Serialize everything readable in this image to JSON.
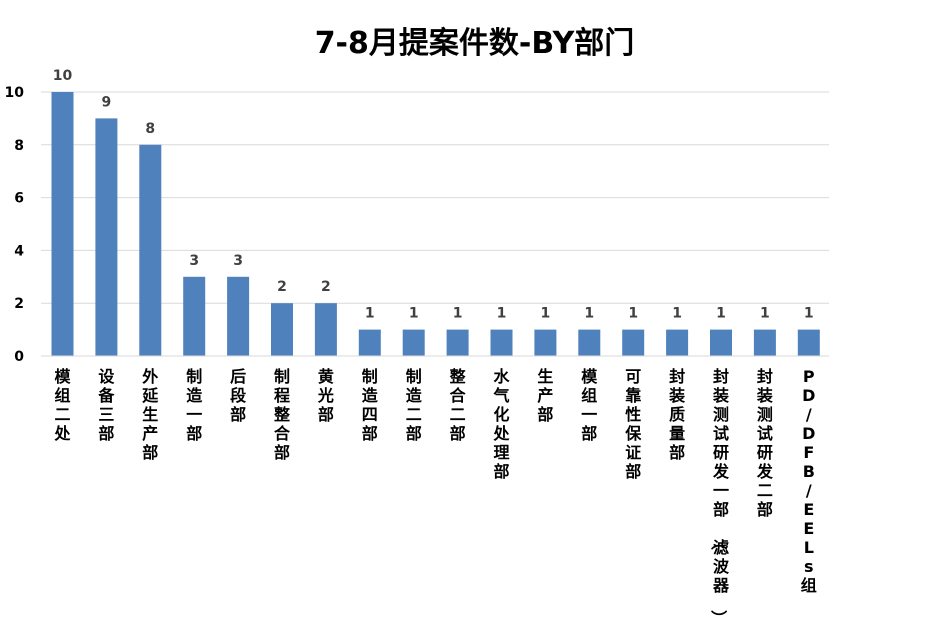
{
  "chart_data": {
    "type": "bar",
    "title": "7-8月提案件数-BY部门",
    "xlabel": "",
    "ylabel": "",
    "ylim": [
      0,
      10
    ],
    "yticks": [
      0,
      2,
      4,
      6,
      8,
      10
    ],
    "grid": true,
    "legend": "none",
    "bar_color": "#4F81BD",
    "categories": [
      "模组二处",
      "设备三部",
      "外延生产部",
      "制造一部",
      "后段部",
      "制程整合部",
      "黄光部",
      "制造四部",
      "制造二部",
      "整合二部",
      "水气化处理部",
      "生产部",
      "模组一部",
      "可靠性保证部",
      "封装质量部",
      "封装测试研发一部（滤波器）",
      "封装测试研发二部",
      "PD/DFB/EELs组"
    ],
    "values": [
      10,
      9,
      8,
      3,
      3,
      2,
      2,
      1,
      1,
      1,
      1,
      1,
      1,
      1,
      1,
      1,
      1,
      1
    ]
  }
}
